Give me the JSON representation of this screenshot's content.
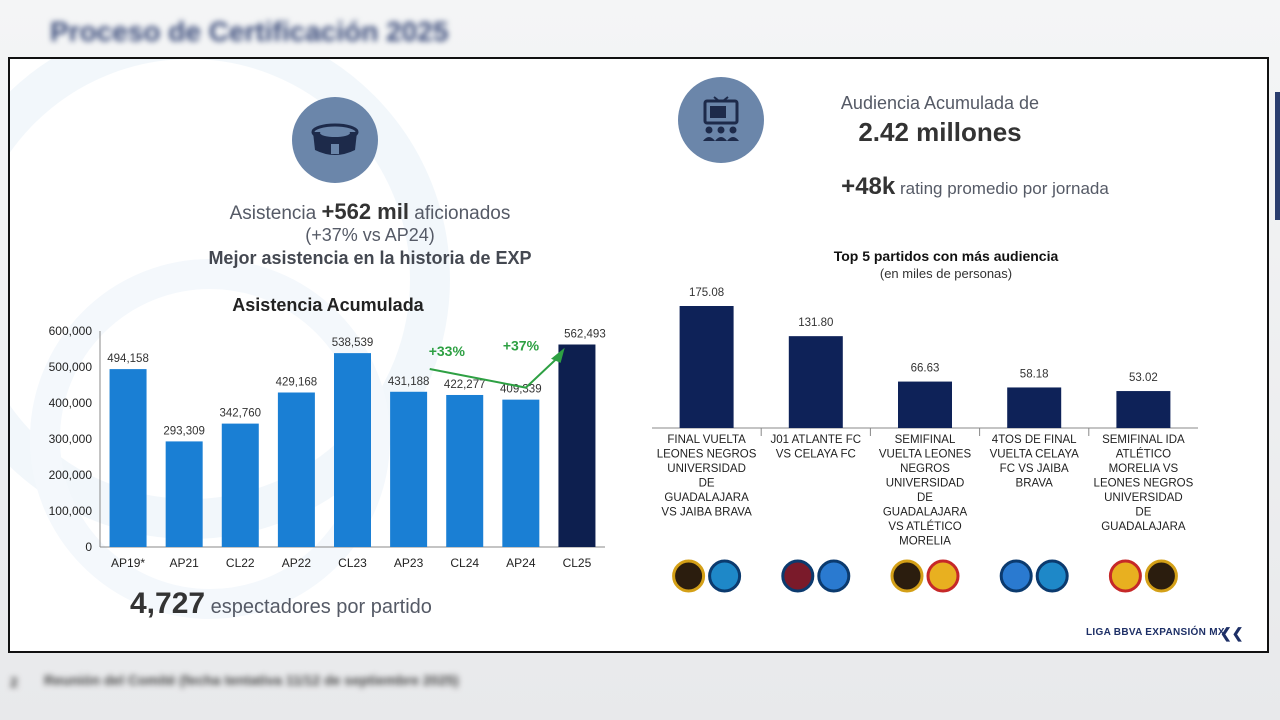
{
  "header": {
    "blurred_title": "Proceso de Certificación 2025"
  },
  "footer": {
    "blurred_note": "Reunión del Comité (fecha tentativa 11/12 de septiembre 2025)",
    "bullet": "2"
  },
  "left": {
    "icon": "stadium-icon",
    "headline_prefix": "Asistencia",
    "headline_value": "+562 mil",
    "headline_suffix": "aficionados",
    "sub": "(+37% vs AP24)",
    "tagline": "Mejor asistencia en la historia de EXP",
    "per_match_value": "4,727",
    "per_match_label": "espectadores por partido",
    "growth_a": "+33%",
    "growth_b": "+37%"
  },
  "right": {
    "icon": "tv-audience-icon",
    "audience_label": "Audiencia Acumulada de",
    "audience_value": "2.42 millones",
    "rating_value": "+48k",
    "rating_label": "rating promedio por jornada",
    "brand": "LIGA BBVA EXPANSIÓN MX"
  },
  "colors": {
    "bar": "#1a7fd4",
    "bar_highlight": "#0d1f4f",
    "bar_right": "#0e2258",
    "growth": "#2ea043",
    "icon_circle": "#6b86aa"
  },
  "chart_data": [
    {
      "type": "bar",
      "title": "Asistencia Acumulada",
      "categories": [
        "AP19*",
        "AP21",
        "CL22",
        "AP22",
        "CL23",
        "AP23",
        "CL24",
        "AP24",
        "CL25"
      ],
      "values": [
        494158,
        293309,
        342760,
        429168,
        538539,
        431188,
        422277,
        409339,
        562493
      ],
      "value_labels": [
        "494,158",
        "293,309",
        "342,760",
        "429,168",
        "538,539",
        "431,188",
        "422,277",
        "409,339",
        "562,493"
      ],
      "yticks": [
        "0",
        "100,000",
        "200,000",
        "300,000",
        "400,000",
        "500,000",
        "600,000"
      ],
      "ylim": [
        0,
        600000
      ],
      "grid": false
    },
    {
      "type": "bar",
      "title": "Top 5 partidos con más audiencia",
      "subtitle": "(en miles de personas)",
      "categories": [
        [
          "FINAL VUELTA",
          "LEONES NEGROS",
          "UNIVERSIDAD",
          "DE",
          "GUADALAJARA",
          "VS JAIBA BRAVA"
        ],
        [
          "J01 ATLANTE FC",
          "VS CELAYA FC"
        ],
        [
          "SEMIFINAL",
          "VUELTA LEONES",
          "NEGROS",
          "UNIVERSIDAD",
          "DE",
          "GUADALAJARA",
          "VS ATLÉTICO",
          "MORELIA"
        ],
        [
          "4TOS DE FINAL",
          "VUELTA CELAYA",
          "FC VS JAIBA",
          "BRAVA"
        ],
        [
          "SEMIFINAL IDA",
          "ATLÉTICO",
          "MORELIA VS",
          "LEONES NEGROS",
          "UNIVERSIDAD",
          "DE",
          "GUADALAJARA"
        ]
      ],
      "values": [
        175.08,
        131.8,
        66.63,
        58.18,
        53.02
      ],
      "value_labels": [
        "175.08",
        "131.80",
        "66.63",
        "58.18",
        "53.02"
      ],
      "team_logos": [
        [
          "leones-negros-logo",
          "jaiba-brava-logo"
        ],
        [
          "atlante-logo",
          "celaya-logo"
        ],
        [
          "leones-negros-logo",
          "morelia-logo"
        ],
        [
          "celaya-logo",
          "jaiba-brava-logo"
        ],
        [
          "morelia-logo",
          "leones-negros-logo"
        ]
      ],
      "grid": false
    }
  ]
}
